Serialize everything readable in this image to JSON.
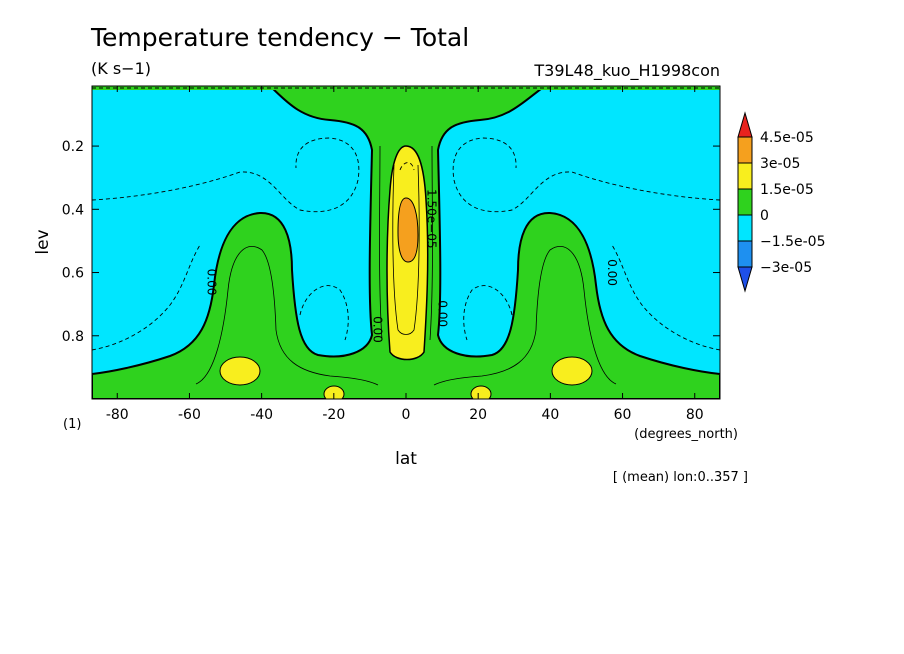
{
  "figure": {
    "title": "Temperature tendency − Total",
    "units": "(K s−1)",
    "run_id": "T39L48_kuo_H1998con",
    "axis_note": "(1)",
    "x_units": "(degrees_north)",
    "mean_note": "[ (mean) lon:0..357 ]"
  },
  "chart_data": {
    "type": "heatmap",
    "title": "Temperature tendency − Total",
    "xlabel": "lat",
    "ylabel": "lev",
    "xlim": [
      -87,
      87
    ],
    "ylim": [
      1.0,
      0.01
    ],
    "y_inverted": true,
    "x_ticks": [
      -80,
      -60,
      -40,
      -20,
      0,
      20,
      40,
      60,
      80
    ],
    "y_ticks": [
      0.2,
      0.4,
      0.6,
      0.8
    ],
    "colorbar": {
      "levels": [
        -3e-05,
        -1.5e-05,
        0,
        1.5e-05,
        3e-05,
        4.5e-05
      ],
      "labels": [
        "4.5e-05",
        "3e-05",
        "1.5e-05",
        "0",
        "−1.5e-05",
        "−3e-05"
      ],
      "colors": [
        "#e8231e",
        "#f5a01e",
        "#f8ee1e",
        "#2fd21e",
        "#00e6ff",
        "#1e90f0",
        "#1e50e8"
      ]
    },
    "contour_labels": [
      {
        "text": "0.00",
        "x": -55,
        "y": 0.63
      },
      {
        "text": "0.00",
        "x": -9,
        "y": 0.78
      },
      {
        "text": "0.00",
        "x": 9,
        "y": 0.73
      },
      {
        "text": "0.00",
        "x": 56,
        "y": 0.6
      },
      {
        "text": "1.50e−05",
        "x": 6,
        "y": 0.43
      }
    ],
    "regions": {
      "background_level": "−1.5e-05 to 0",
      "positive_band": "equatorial column and low-level mid-latitudes, 0 to 1.5e-05",
      "maxima": [
        {
          "lat": 0,
          "lev": 0.42,
          "range": "3e-05 to 4.5e-05"
        },
        {
          "lat": -47,
          "lev": 0.88,
          "range": "1.5e-05 to 3e-05"
        },
        {
          "lat": 47,
          "lev": 0.88,
          "range": "1.5e-05 to 3e-05"
        }
      ]
    }
  }
}
